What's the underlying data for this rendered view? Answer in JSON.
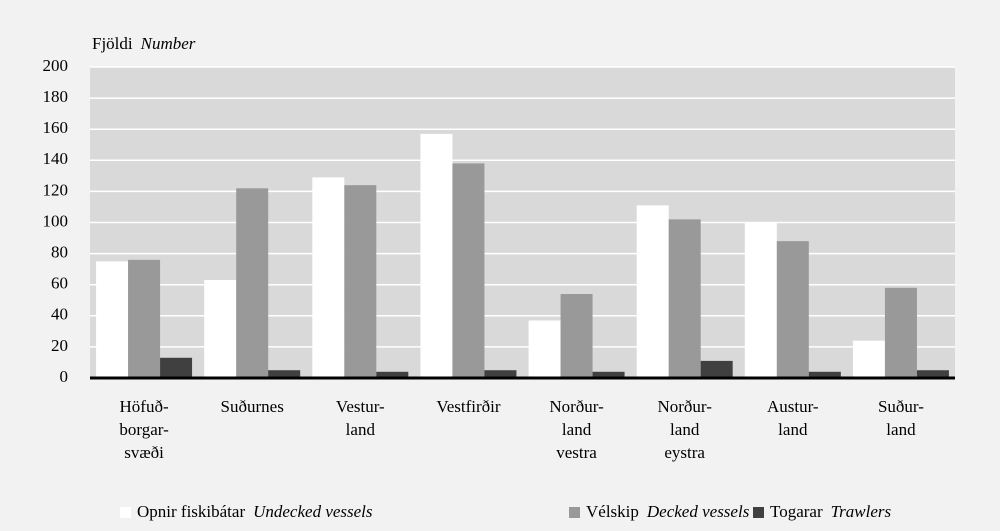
{
  "chart_data": {
    "type": "bar",
    "y_label": "Fjöldi",
    "y_label_en": "Number",
    "categories": [
      [
        "Höfuð-",
        "borgar-",
        "svæði"
      ],
      [
        "Suðurnes"
      ],
      [
        "Vestur-",
        "land"
      ],
      [
        "Vestfirðir"
      ],
      [
        "Norður-",
        "land",
        "vestra"
      ],
      [
        "Norður-",
        "land",
        "eystra"
      ],
      [
        "Austur-",
        "land"
      ],
      [
        "Suður-",
        "land"
      ]
    ],
    "series": [
      {
        "name": "Opnir fiskibátar",
        "name_en": "Undecked vessels",
        "color": "#ffffff",
        "values": [
          75,
          63,
          129,
          157,
          37,
          111,
          100,
          24
        ]
      },
      {
        "name": "Vélskip",
        "name_en": "Decked vessels",
        "color": "#999999",
        "values": [
          76,
          122,
          124,
          138,
          54,
          102,
          88,
          58
        ]
      },
      {
        "name": "Togarar",
        "name_en": "Trawlers",
        "color": "#404040",
        "values": [
          13,
          5,
          4,
          5,
          4,
          11,
          4,
          5
        ]
      }
    ],
    "ylim": [
      0,
      200
    ],
    "yticks": [
      0,
      20,
      40,
      60,
      80,
      100,
      120,
      140,
      160,
      180,
      200
    ],
    "grid": true
  }
}
